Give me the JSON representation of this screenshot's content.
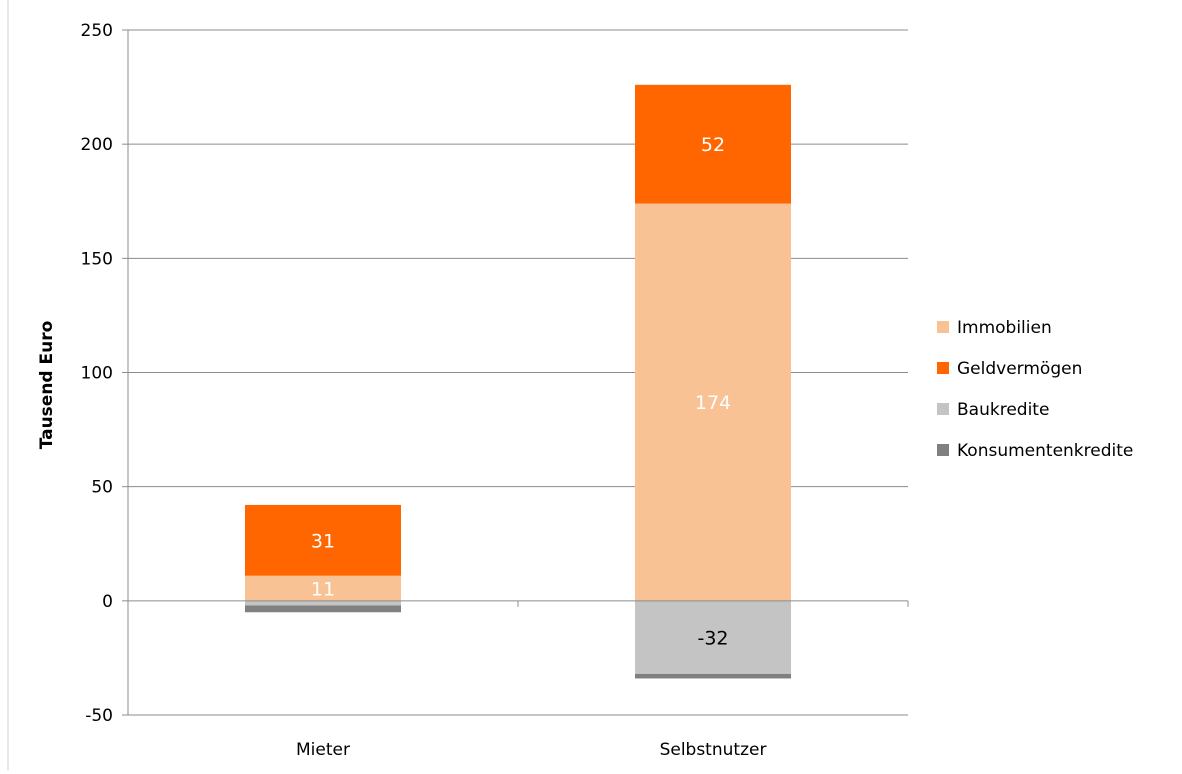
{
  "chart_data": {
    "type": "bar",
    "stacked": true,
    "categories": [
      "Mieter",
      "Selbstnutzer"
    ],
    "series": [
      {
        "name": "Immobilien",
        "color": "#f9c295",
        "values": [
          11,
          174
        ],
        "label_color": "#ffffff"
      },
      {
        "name": "Geldvermögen",
        "color": "#ff6600",
        "values": [
          31,
          52
        ],
        "label_color": "#ffffff"
      },
      {
        "name": "Baukredite",
        "color": "#c4c4c4",
        "values": [
          -2,
          -32
        ],
        "label_color": "#000000"
      },
      {
        "name": "Konsumentenkredite",
        "color": "#808080",
        "values": [
          -3,
          -2
        ],
        "label_color": "#000000"
      }
    ],
    "data_labels": [
      {
        "category": "Mieter",
        "series": "Immobilien",
        "text": "11"
      },
      {
        "category": "Mieter",
        "series": "Geldvermögen",
        "text": "31"
      },
      {
        "category": "Selbstnutzer",
        "series": "Immobilien",
        "text": "174"
      },
      {
        "category": "Selbstnutzer",
        "series": "Geldvermögen",
        "text": "52"
      },
      {
        "category": "Selbstnutzer",
        "series": "Baukredite",
        "text": "-32"
      }
    ],
    "ylabel": "Tausend Euro",
    "ylim": [
      -50,
      250
    ],
    "yticks": [
      "-50",
      "0",
      "50",
      "100",
      "150",
      "200",
      "250"
    ],
    "grid": true,
    "legend_position": "right"
  }
}
